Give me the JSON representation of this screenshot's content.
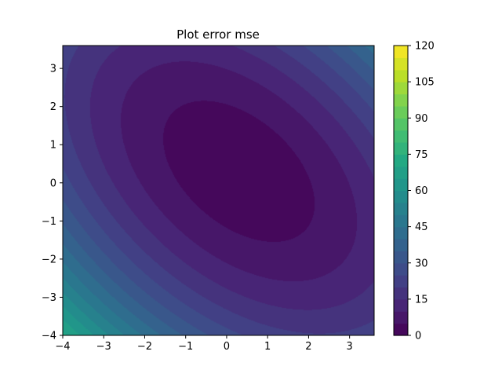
{
  "chart_data": {
    "type": "heatmap",
    "subtype": "filled-contour",
    "title": "Plot error mse",
    "xlabel": "",
    "ylabel": "",
    "xlim": [
      -4,
      3.6
    ],
    "ylim": [
      -4,
      3.6
    ],
    "xticks": [
      -4,
      -3,
      -2,
      -1,
      0,
      1,
      2,
      3
    ],
    "yticks": [
      -4,
      -3,
      -2,
      -1,
      0,
      1,
      2,
      3
    ],
    "xtick_labels": [
      "−4",
      "−3",
      "−2",
      "−1",
      "0",
      "1",
      "2",
      "3"
    ],
    "ytick_labels": [
      "−4",
      "−3",
      "−2",
      "−1",
      "0",
      "1",
      "2",
      "3"
    ],
    "surface": {
      "form": "quadratic",
      "center": [
        0.3,
        0.3
      ],
      "xx": 1.3,
      "yy": 1.3,
      "xy": 1.2,
      "offset": 1.5
    },
    "levels": {
      "min": 0,
      "max": 120,
      "step": 5
    },
    "colormap": "viridis",
    "colorbar": {
      "ticks": [
        0,
        15,
        30,
        45,
        60,
        75,
        90,
        105,
        120
      ],
      "tick_labels": [
        "0",
        "15",
        "30",
        "45",
        "60",
        "75",
        "90",
        "105",
        "120"
      ],
      "range": [
        0,
        120
      ]
    },
    "grid": false
  }
}
